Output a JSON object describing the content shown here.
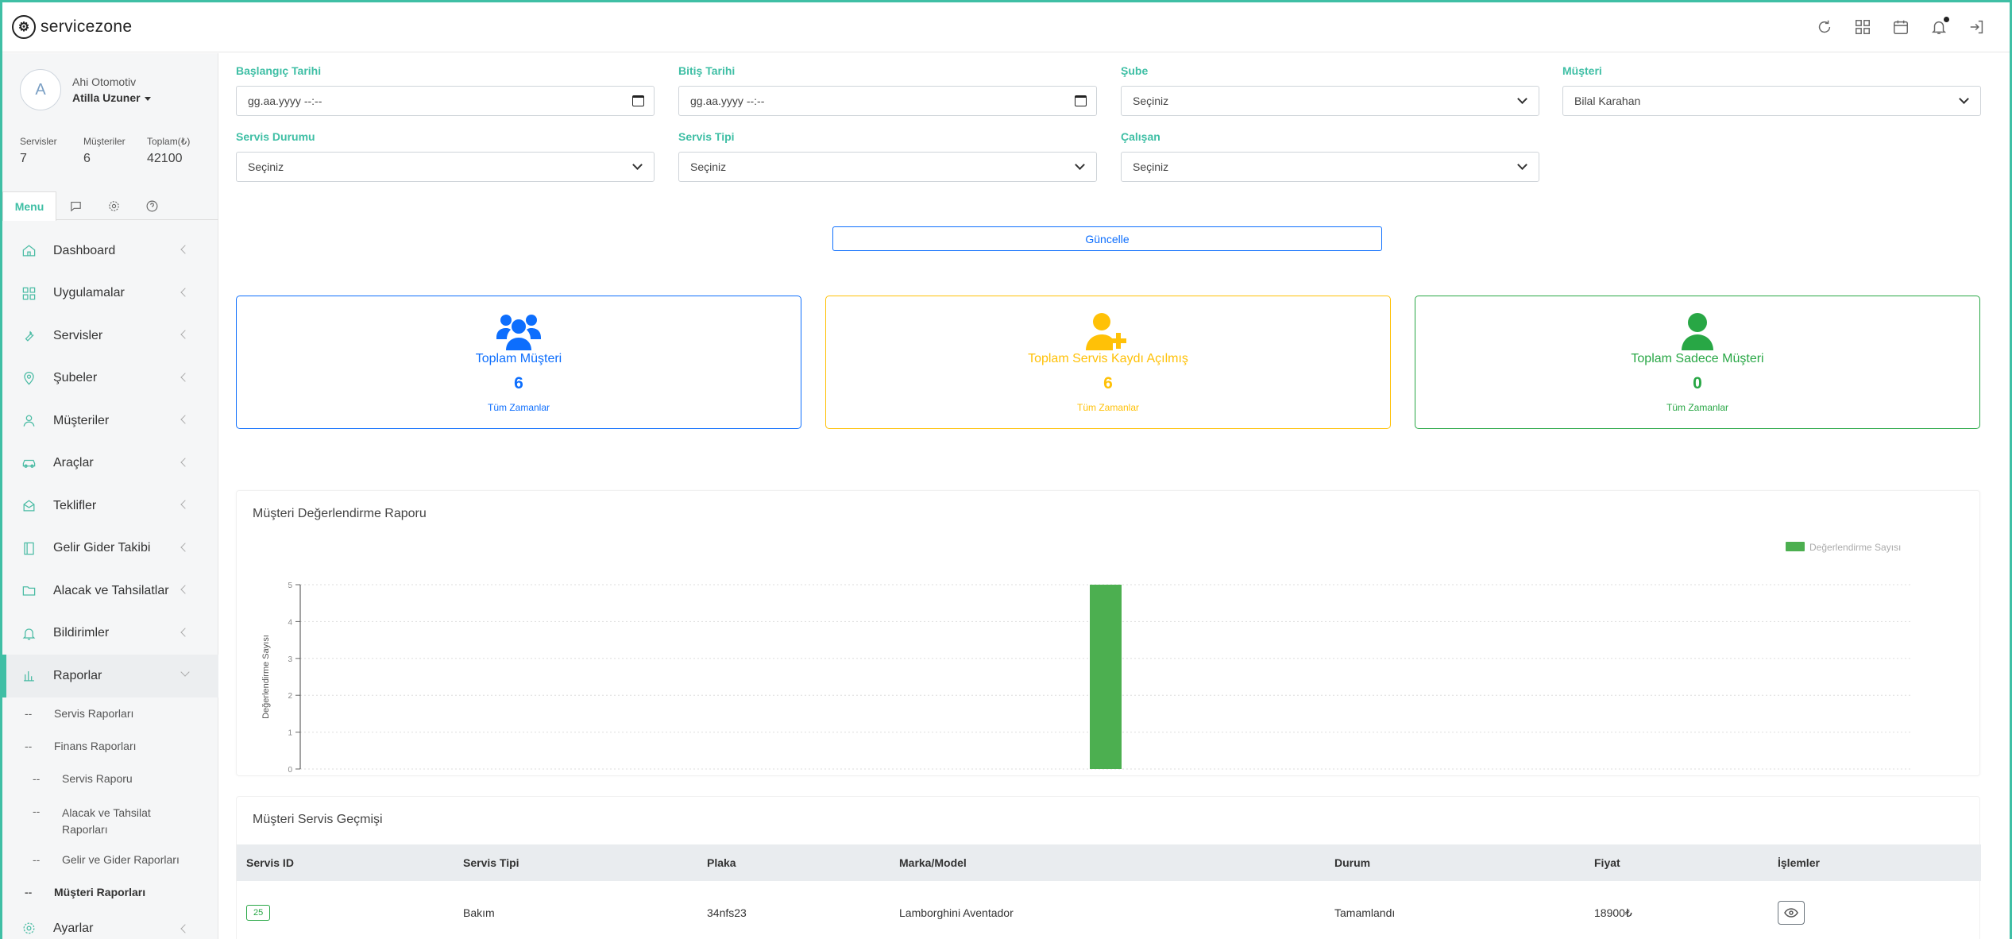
{
  "app": {
    "name": "servicezone"
  },
  "topbar": {
    "icons": [
      "refresh-icon",
      "grid-icon",
      "calendar-icon",
      "bell-icon",
      "logout-icon"
    ]
  },
  "user": {
    "avatar_letter": "A",
    "company": "Ahi Otomotiv",
    "name": "Atilla Uzuner"
  },
  "stats": [
    {
      "label": "Servisler",
      "value": "7"
    },
    {
      "label": "Müşteriler",
      "value": "6"
    },
    {
      "label": "Toplam(₺)",
      "value": "42100"
    }
  ],
  "side_tabs": {
    "menu_label": "Menu"
  },
  "menu": {
    "items": [
      {
        "label": "Dashboard",
        "icon": "home-icon"
      },
      {
        "label": "Uygulamalar",
        "icon": "apps-icon"
      },
      {
        "label": "Servisler",
        "icon": "wrench-icon"
      },
      {
        "label": "Şubeler",
        "icon": "location-icon"
      },
      {
        "label": "Müşteriler",
        "icon": "users-icon"
      },
      {
        "label": "Araçlar",
        "icon": "car-icon"
      },
      {
        "label": "Teklifler",
        "icon": "offer-icon"
      },
      {
        "label": "Gelir Gider Takibi",
        "icon": "book-icon"
      },
      {
        "label": "Alacak ve Tahsilatlar",
        "icon": "wallet-icon"
      },
      {
        "label": "Bildirimler",
        "icon": "bell-icon"
      },
      {
        "label": "Raporlar",
        "icon": "chart-icon"
      }
    ],
    "sub_items": {
      "servis_raporlari": "Servis Raporları",
      "finans_raporlari": "Finans Raporları",
      "servis_raporu": "Servis Raporu",
      "alacak_line1": "Alacak ve Tahsilat",
      "alacak_line2": "Raporları",
      "gelir_gider": "Gelir ve Gider Raporları",
      "musteri_raporlari": "Müşteri Raporları"
    },
    "ayarlar": "Ayarlar",
    "dash": "--"
  },
  "filters": {
    "start_label": "Başlangıç Tarihi",
    "start_value": "gg.aa.yyyy --:--",
    "end_label": "Bitiş Tarihi",
    "end_value": "gg.aa.yyyy --:--",
    "branch_label": "Şube",
    "branch_value": "Seçiniz",
    "customer_label": "Müşteri",
    "customer_value": "Bilal Karahan",
    "status_label": "Servis Durumu",
    "status_value": "Seçiniz",
    "type_label": "Servis Tipi",
    "type_value": "Seçiniz",
    "employee_label": "Çalışan",
    "employee_value": "Seçiniz",
    "update_label": "Güncelle"
  },
  "cards": [
    {
      "title": "Toplam Müşteri",
      "value": "6",
      "sub": "Tüm Zamanlar",
      "color": "#0d6efd"
    },
    {
      "title": "Toplam Servis Kaydı Açılmış",
      "value": "6",
      "sub": "Tüm Zamanlar",
      "color": "#ffc107"
    },
    {
      "title": "Toplam Sadece Müşteri",
      "value": "0",
      "sub": "Tüm Zamanlar",
      "color": "#28a745"
    }
  ],
  "chart_title": "Müşteri Değerlendirme Raporu",
  "chart_data": {
    "type": "bar",
    "title": "Müşteri Değerlendirme Raporu",
    "ylabel": "Değerlendirme Sayısı",
    "xlabel": "",
    "ylim": [
      0,
      5
    ],
    "y_ticks": [
      0,
      1,
      2,
      3,
      4,
      5
    ],
    "categories": [
      "",
      "",
      "",
      "",
      ""
    ],
    "series": [
      {
        "name": "Değerlendirme Sayısı",
        "values": [
          0,
          0,
          5,
          0,
          0
        ],
        "color": "#4caf50"
      }
    ],
    "legend": "top-right",
    "grid": true
  },
  "history": {
    "title": "Müşteri Servis Geçmişi",
    "columns": [
      "Servis ID",
      "Servis Tipi",
      "Plaka",
      "Marka/Model",
      "Durum",
      "Fiyat",
      "İşlemler"
    ],
    "rows": [
      {
        "id": "25",
        "type": "Bakım",
        "plate": "34nfs23",
        "model": "Lamborghini Aventador",
        "status": "Tamamlandı",
        "price": "18900₺"
      }
    ]
  }
}
